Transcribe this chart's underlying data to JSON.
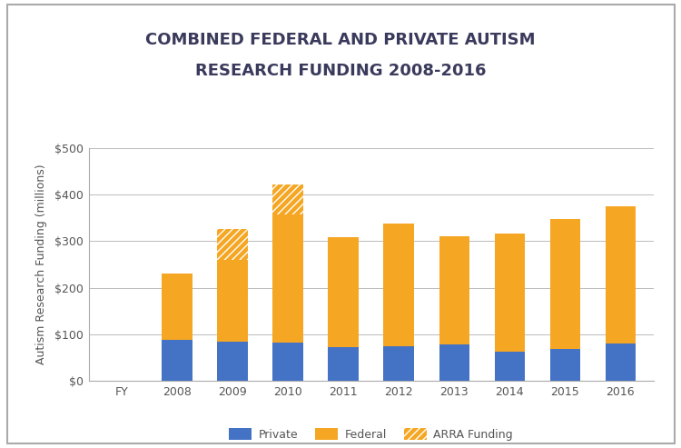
{
  "years": [
    "FY",
    "2008",
    "2009",
    "2010",
    "2011",
    "2012",
    "2013",
    "2014",
    "2015",
    "2016"
  ],
  "private": [
    0,
    88,
    84,
    82,
    73,
    75,
    78,
    63,
    68,
    80
  ],
  "federal": [
    0,
    143,
    176,
    275,
    235,
    262,
    233,
    253,
    280,
    295
  ],
  "arra": [
    0,
    0,
    65,
    65,
    0,
    0,
    0,
    0,
    0,
    0
  ],
  "title_line1": "COMBINED FEDERAL AND PRIVATE AUTISM",
  "title_line2": "RESEARCH FUNDING 2008-2016",
  "ylabel": "Autism Research Funding (millions)",
  "ylim": [
    0,
    500
  ],
  "yticks": [
    0,
    100,
    200,
    300,
    400,
    500
  ],
  "ytick_labels": [
    "$0",
    "$100",
    "$200",
    "$300",
    "$400",
    "$500"
  ],
  "private_color": "#4472C4",
  "federal_color": "#F5A623",
  "background_color": "#FFFFFF",
  "plot_bg_color": "#FFFFFF",
  "grid_color": "#BBBBBB",
  "title_color": "#3A3A5C",
  "tick_color": "#555555",
  "border_color": "#AAAAAA",
  "legend_labels": [
    "Private",
    "Federal",
    "ARRA Funding"
  ],
  "bar_width": 0.55
}
